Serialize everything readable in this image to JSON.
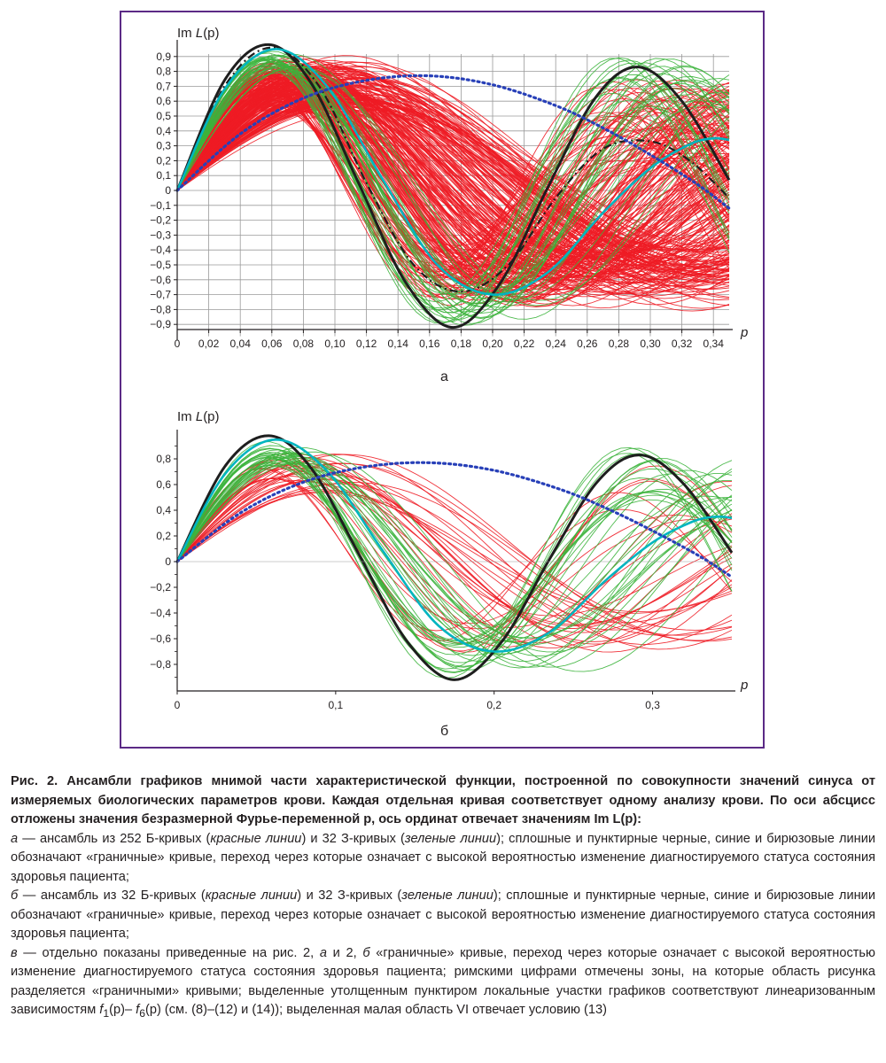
{
  "chart_data": [
    {
      "type": "line",
      "panel_label": "а",
      "ylabel_pre": "Im ",
      "ylabel_fn": "L",
      "ylabel_arg": "(p)",
      "xlabel": "p",
      "xlim": [
        0,
        0.35
      ],
      "ylim": [
        -0.98,
        1.0
      ],
      "grid": true,
      "x_ticks": [
        "0",
        "0,02",
        "0,04",
        "0,06",
        "0,08",
        "0,10",
        "0,12",
        "0,14",
        "0,16",
        "0,18",
        "0,20",
        "0,22",
        "0,24",
        "0,26",
        "0,28",
        "0,30",
        "0,32",
        "0,34"
      ],
      "x_tick_values": [
        0,
        0.02,
        0.04,
        0.06,
        0.08,
        0.1,
        0.12,
        0.14,
        0.16,
        0.18,
        0.2,
        0.22,
        0.24,
        0.26,
        0.28,
        0.3,
        0.32,
        0.34
      ],
      "y_ticks": [
        "0,9",
        "0,8",
        "0,7",
        "0,6",
        "0,5",
        "0,4",
        "0,3",
        "0,2",
        "0,1",
        "0",
        "−0,1",
        "−0,2",
        "−0,3",
        "−0,4",
        "−0,5",
        "−0,6",
        "−0,7",
        "−0,8",
        "−0,9"
      ],
      "y_tick_values": [
        0.9,
        0.8,
        0.7,
        0.6,
        0.5,
        0.4,
        0.3,
        0.2,
        0.1,
        0,
        -0.1,
        -0.2,
        -0.3,
        -0.4,
        -0.5,
        -0.6,
        -0.7,
        -0.8,
        -0.9
      ],
      "ensembles": [
        {
          "color": "#ee1c25",
          "count": 252,
          "peak_x_range": [
            0.055,
            0.12
          ],
          "amp_range": [
            0.6,
            0.97
          ],
          "amp2_range": [
            0.2,
            0.75
          ]
        },
        {
          "color": "#3cb43c",
          "count": 32,
          "peak_x_range": [
            0.055,
            0.075
          ],
          "amp_range": [
            0.85,
            0.98
          ],
          "amp2_range": [
            0.55,
            0.9
          ]
        }
      ],
      "series": [
        {
          "color": "#1e1e1e",
          "style": "solid",
          "points": [
            [
              0,
              0
            ],
            [
              0.03,
              0.74
            ],
            [
              0.058,
              0.98
            ],
            [
              0.085,
              0.72
            ],
            [
              0.115,
              0.05
            ],
            [
              0.145,
              -0.62
            ],
            [
              0.175,
              -0.92
            ],
            [
              0.205,
              -0.62
            ],
            [
              0.235,
              0.02
            ],
            [
              0.265,
              0.62
            ],
            [
              0.292,
              0.83
            ],
            [
              0.32,
              0.6
            ],
            [
              0.35,
              0.07
            ]
          ]
        },
        {
          "color": "#1e1e1e",
          "style": "dashed",
          "points": [
            [
              0,
              0
            ],
            [
              0.03,
              0.7
            ],
            [
              0.06,
              0.96
            ],
            [
              0.09,
              0.7
            ],
            [
              0.12,
              0.05
            ],
            [
              0.15,
              -0.5
            ],
            [
              0.18,
              -0.68
            ],
            [
              0.21,
              -0.5
            ],
            [
              0.24,
              -0.05
            ],
            [
              0.27,
              0.28
            ],
            [
              0.3,
              0.33
            ],
            [
              0.325,
              0.2
            ],
            [
              0.35,
              -0.05
            ]
          ]
        },
        {
          "color": "#00b5c0",
          "style": "solid",
          "points": [
            [
              0,
              0
            ],
            [
              0.03,
              0.68
            ],
            [
              0.062,
              0.95
            ],
            [
              0.095,
              0.7
            ],
            [
              0.13,
              0.08
            ],
            [
              0.165,
              -0.5
            ],
            [
              0.2,
              -0.7
            ],
            [
              0.235,
              -0.55
            ],
            [
              0.27,
              -0.15
            ],
            [
              0.3,
              0.15
            ],
            [
              0.325,
              0.31
            ],
            [
              0.34,
              0.35
            ],
            [
              0.35,
              0.34
            ]
          ]
        },
        {
          "color": "#2840b8",
          "style": "dotted",
          "points": [
            [
              0,
              0
            ],
            [
              0.04,
              0.38
            ],
            [
              0.08,
              0.62
            ],
            [
              0.12,
              0.74
            ],
            [
              0.16,
              0.77
            ],
            [
              0.2,
              0.71
            ],
            [
              0.24,
              0.57
            ],
            [
              0.27,
              0.42
            ],
            [
              0.3,
              0.24
            ],
            [
              0.33,
              0.04
            ],
            [
              0.35,
              -0.12
            ]
          ]
        }
      ]
    },
    {
      "type": "line",
      "panel_label": "б",
      "ylabel_pre": "Im ",
      "ylabel_fn": "L",
      "ylabel_arg": "(p)",
      "xlabel": "p",
      "xlim": [
        0,
        0.35
      ],
      "ylim": [
        -0.98,
        1.0
      ],
      "grid": false,
      "x_ticks": [
        "0",
        "0,1",
        "0,2",
        "0,3"
      ],
      "x_tick_values": [
        0,
        0.1,
        0.2,
        0.3
      ],
      "y_ticks": [
        "0,8",
        "0,6",
        "0,4",
        "0,2",
        "0",
        "−0,2",
        "−0,4",
        "−0,6",
        "−0,8"
      ],
      "y_tick_values": [
        0.8,
        0.6,
        0.4,
        0.2,
        0,
        -0.2,
        -0.4,
        -0.6,
        -0.8
      ],
      "ensembles": [
        {
          "color": "#ee1c25",
          "count": 32,
          "peak_x_range": [
            0.055,
            0.11
          ],
          "amp_range": [
            0.6,
            0.97
          ],
          "amp2_range": [
            0.25,
            0.75
          ]
        },
        {
          "color": "#3cb43c",
          "count": 32,
          "peak_x_range": [
            0.055,
            0.08
          ],
          "amp_range": [
            0.8,
            0.98
          ],
          "amp2_range": [
            0.45,
            0.9
          ]
        }
      ],
      "series": [
        {
          "color": "#1e1e1e",
          "style": "solid",
          "points": [
            [
              0,
              0
            ],
            [
              0.03,
              0.74
            ],
            [
              0.058,
              0.98
            ],
            [
              0.085,
              0.72
            ],
            [
              0.115,
              0.05
            ],
            [
              0.145,
              -0.62
            ],
            [
              0.175,
              -0.92
            ],
            [
              0.205,
              -0.62
            ],
            [
              0.235,
              0.02
            ],
            [
              0.265,
              0.62
            ],
            [
              0.292,
              0.83
            ],
            [
              0.32,
              0.6
            ],
            [
              0.35,
              0.07
            ]
          ]
        },
        {
          "color": "#00b5c0",
          "style": "solid",
          "points": [
            [
              0,
              0
            ],
            [
              0.03,
              0.68
            ],
            [
              0.062,
              0.95
            ],
            [
              0.095,
              0.7
            ],
            [
              0.13,
              0.08
            ],
            [
              0.165,
              -0.5
            ],
            [
              0.2,
              -0.7
            ],
            [
              0.235,
              -0.55
            ],
            [
              0.27,
              -0.15
            ],
            [
              0.3,
              0.15
            ],
            [
              0.325,
              0.31
            ],
            [
              0.34,
              0.35
            ],
            [
              0.35,
              0.34
            ]
          ]
        },
        {
          "color": "#2840b8",
          "style": "dotted",
          "points": [
            [
              0,
              0
            ],
            [
              0.04,
              0.38
            ],
            [
              0.08,
              0.62
            ],
            [
              0.12,
              0.74
            ],
            [
              0.16,
              0.77
            ],
            [
              0.2,
              0.71
            ],
            [
              0.24,
              0.57
            ],
            [
              0.27,
              0.42
            ],
            [
              0.3,
              0.24
            ],
            [
              0.33,
              0.04
            ],
            [
              0.35,
              -0.12
            ]
          ]
        }
      ]
    }
  ],
  "caption": {
    "title": "Рис. 2. Ансамбли графиков мнимой части характеристической функции, построенной по совокупности значений синуса от измеряемых биологических параметров крови. Каждая отдельная кривая соответствует одному анализу крови. По оси абсцисс отложены значения безразмерной Фурье-переменной p, ось ординат отвечает значениям Im L(p):",
    "a_letter": "а",
    "a_text1": " — ансамбль из 252 Б-кривых (",
    "a_red": "красные линии",
    "a_text2": ") и 32 З-кривых (",
    "a_green": "зеленые линии",
    "a_text3": "); сплошные и пунктирные черные, синие и бирюзовые линии обозначают «граничные» кривые, переход через которые означает с высокой вероятностью изменение диагностируемого статуса состояния здоровья пациента;",
    "b_letter": "б",
    "b_text1": " — ансамбль из 32 Б-кривых (",
    "b_red": "красные линии",
    "b_text2": ") и 32 З-кривых (",
    "b_green": "зеленые линии",
    "b_text3": "); сплошные и пунктирные черные, синие и бирюзовые линии обозначают «граничные» кривые, переход через которые означает с высокой вероятностью изменение диагностируемого статуса состояния здоровья пациента;",
    "v_letter": "в",
    "v_text1": " — отдельно показаны приведенные на рис. 2, ",
    "v_a": "а",
    "v_text2": " и 2, ",
    "v_b": "б",
    "v_text3": " «граничные» кривые, переход через которые означает с высокой вероятностью изменение диагностируемого статуса состояния здоровья пациента; римскими цифрами отмечены зоны, на которые область рисунка разделяется «граничными» кривыми; выделенные утолщенным пунктиром локальные участки графиков соответствуют линеаризованным зависимостям ",
    "v_f1": "f",
    "v_sub1": "1",
    "v_mid": "(p)– ",
    "v_f6": "f",
    "v_sub6": "6",
    "v_text4": "(p) (см. (8)–(12) и (14)); выделенная малая область VI отвечает условию (13)"
  }
}
